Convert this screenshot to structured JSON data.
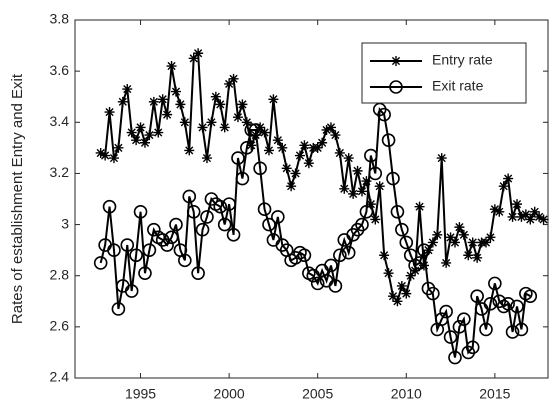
{
  "chart_data": {
    "type": "line",
    "ylabel": "Rates of establishment Entry and Exit",
    "x": [
      1992.75,
      1993,
      1993.25,
      1993.5,
      1993.75,
      1994,
      1994.25,
      1994.5,
      1994.75,
      1995,
      1995.25,
      1995.5,
      1995.75,
      1996,
      1996.25,
      1996.5,
      1996.75,
      1997,
      1997.25,
      1997.5,
      1997.75,
      1998,
      1998.25,
      1998.5,
      1998.75,
      1999,
      1999.25,
      1999.5,
      1999.75,
      2000,
      2000.25,
      2000.5,
      2000.75,
      2001,
      2001.25,
      2001.5,
      2001.75,
      2002,
      2002.25,
      2002.5,
      2002.75,
      2003,
      2003.25,
      2003.5,
      2003.75,
      2004,
      2004.25,
      2004.5,
      2004.75,
      2005,
      2005.25,
      2005.5,
      2005.75,
      2006,
      2006.25,
      2006.5,
      2006.75,
      2007,
      2007.25,
      2007.5,
      2007.75,
      2008,
      2008.25,
      2008.5,
      2008.75,
      2009,
      2009.25,
      2009.5,
      2009.75,
      2010,
      2010.25,
      2010.5,
      2010.75,
      2011,
      2011.25,
      2011.5,
      2011.75,
      2012,
      2012.25,
      2012.5,
      2012.75,
      2013,
      2013.25,
      2013.5,
      2013.75,
      2014,
      2014.25,
      2014.5,
      2014.75,
      2015,
      2015.25,
      2015.5,
      2015.75,
      2016,
      2016.25,
      2016.5,
      2016.75,
      2017,
      2017.25,
      2017.5,
      2017.75
    ],
    "series": [
      {
        "name": "Entry rate",
        "color": "#000000",
        "marker": "asterisk",
        "values": [
          3.28,
          3.27,
          3.44,
          3.26,
          3.3,
          3.48,
          3.53,
          3.36,
          3.33,
          3.38,
          3.32,
          3.35,
          3.48,
          3.36,
          3.49,
          3.43,
          3.62,
          3.52,
          3.47,
          3.4,
          3.29,
          3.65,
          3.67,
          3.38,
          3.26,
          3.4,
          3.5,
          3.47,
          3.38,
          3.55,
          3.57,
          3.42,
          3.47,
          3.4,
          3.31,
          3.35,
          3.38,
          3.36,
          3.29,
          3.49,
          3.33,
          3.3,
          3.22,
          3.15,
          3.2,
          3.27,
          3.31,
          3.24,
          3.3,
          3.3,
          3.32,
          3.37,
          3.38,
          3.35,
          3.28,
          3.14,
          3.26,
          3.12,
          3.21,
          3.13,
          3.17,
          3.08,
          3.02,
          3.15,
          2.88,
          2.81,
          2.72,
          2.7,
          2.76,
          2.73,
          2.8,
          2.82,
          3.07,
          2.84,
          2.9,
          2.93,
          2.96,
          3.26,
          2.85,
          2.95,
          2.93,
          2.99,
          2.96,
          2.88,
          2.93,
          2.87,
          2.93,
          2.93,
          2.95,
          3.06,
          3.05,
          3.15,
          3.18,
          3.03,
          3.08,
          3.03,
          3.04,
          3.02,
          3.05,
          3.03,
          3.02
        ]
      },
      {
        "name": "Exit rate",
        "color": "#000000",
        "marker": "circle",
        "values": [
          2.85,
          2.92,
          3.07,
          2.9,
          2.67,
          2.76,
          2.92,
          2.74,
          2.88,
          3.05,
          2.81,
          2.9,
          2.98,
          2.95,
          2.94,
          2.92,
          2.95,
          3.0,
          2.9,
          2.86,
          3.11,
          3.05,
          2.81,
          2.98,
          3.03,
          3.1,
          3.08,
          3.07,
          3.0,
          3.08,
          2.96,
          3.26,
          3.18,
          3.3,
          3.37,
          3.37,
          3.22,
          3.06,
          3.0,
          2.94,
          3.03,
          2.92,
          2.9,
          2.86,
          2.87,
          2.89,
          2.88,
          2.81,
          2.8,
          2.77,
          2.82,
          2.78,
          2.84,
          2.76,
          2.88,
          2.94,
          2.89,
          2.96,
          2.98,
          3.0,
          3.05,
          3.27,
          3.2,
          3.45,
          3.43,
          3.33,
          3.18,
          3.05,
          2.98,
          2.93,
          2.88,
          2.84,
          2.85,
          2.9,
          2.75,
          2.73,
          2.59,
          2.63,
          2.66,
          2.56,
          2.48,
          2.6,
          2.63,
          2.5,
          2.52,
          2.72,
          2.67,
          2.59,
          2.69,
          2.77,
          2.7,
          2.68,
          2.69,
          2.58,
          2.68,
          2.59,
          2.73,
          2.72,
          null,
          null,
          null
        ]
      }
    ],
    "xlim": [
      1991.3,
      2018
    ],
    "xticks": [
      1995,
      2000,
      2005,
      2010,
      2015
    ],
    "ylim": [
      2.4,
      3.8
    ],
    "yticks": [
      2.4,
      2.6,
      2.8,
      3,
      3.2,
      3.4,
      3.6,
      3.8
    ],
    "grid": false,
    "legend": "upper right"
  }
}
